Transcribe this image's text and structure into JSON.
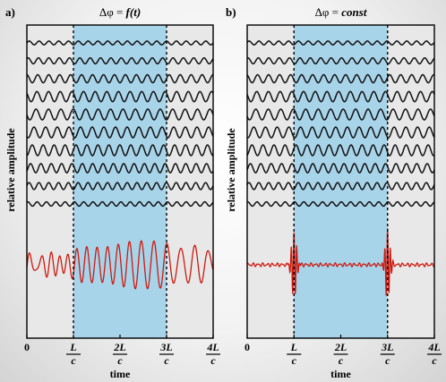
{
  "panels": [
    {
      "id": "a",
      "label": "a)",
      "title_prefix": "Δφ = ",
      "title_expr": "f(t)",
      "ylabel": "relative amplitude",
      "xlabel": "time",
      "dashed_lines_at": [
        1,
        3
      ],
      "shaded_interval": [
        1,
        3
      ],
      "result_mode": "chaotic",
      "ticks": [
        {
          "num": "",
          "den": "",
          "plain": "0"
        },
        {
          "num": "L",
          "den": "c",
          "plain": ""
        },
        {
          "num": "2L",
          "den": "c",
          "plain": ""
        },
        {
          "num": "3L",
          "den": "c",
          "plain": ""
        },
        {
          "num": "4L",
          "den": "c",
          "plain": ""
        }
      ]
    },
    {
      "id": "b",
      "label": "b)",
      "title_prefix": "Δφ = ",
      "title_expr": "const",
      "ylabel": "relative amplitude",
      "xlabel": "time",
      "dashed_lines_at": [
        1,
        3
      ],
      "shaded_interval": [
        1,
        3
      ],
      "result_mode": "pulses",
      "ticks": [
        {
          "num": "",
          "den": "",
          "plain": "0"
        },
        {
          "num": "L",
          "den": "c",
          "plain": ""
        },
        {
          "num": "2L",
          "den": "c",
          "plain": ""
        },
        {
          "num": "3L",
          "den": "c",
          "plain": ""
        },
        {
          "num": "4L",
          "den": "c",
          "plain": ""
        }
      ]
    }
  ],
  "component_waves": [
    {
      "cycles": 19,
      "amplitude": 0.35
    },
    {
      "cycles": 18,
      "amplitude": 0.55
    },
    {
      "cycles": 17,
      "amplitude": 0.75
    },
    {
      "cycles": 16,
      "amplitude": 0.95
    },
    {
      "cycles": 15,
      "amplitude": 1.0
    },
    {
      "cycles": 16,
      "amplitude": 1.0
    },
    {
      "cycles": 17,
      "amplitude": 1.0
    },
    {
      "cycles": 18,
      "amplitude": 0.85
    },
    {
      "cycles": 19,
      "amplitude": 0.65
    },
    {
      "cycles": 20,
      "amplitude": 0.4
    }
  ],
  "colors": {
    "panel_bg": "#e8e8e8",
    "shade": "#a8d4ea",
    "component_wave": "#111111",
    "result_wave": "#cc1a10",
    "axis": "#000000"
  }
}
